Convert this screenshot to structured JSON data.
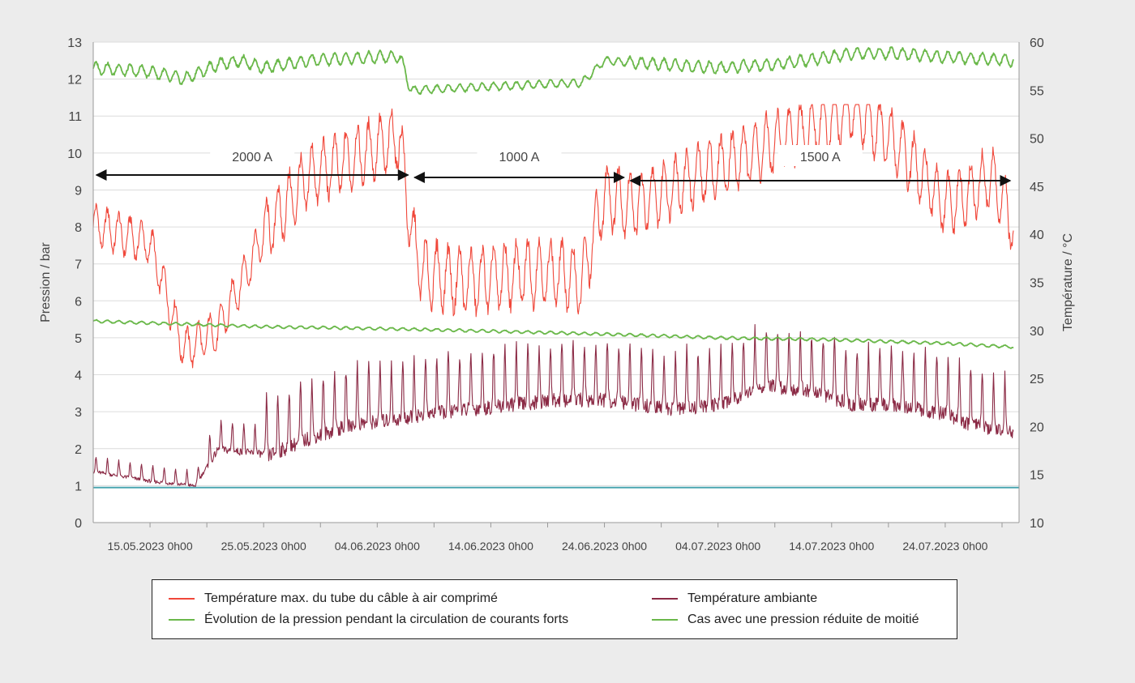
{
  "chart_data": {
    "type": "line",
    "title": "",
    "x_axis": {
      "tick_labels": [
        "15.05.2023 0h00",
        "25.05.2023 0h00",
        "04.06.2023 0h00",
        "14.06.2023 0h00",
        "24.06.2023 0h00",
        "04.07.2023 0h00",
        "14.07.2023 0h00",
        "24.07.2023 0h00"
      ],
      "range_days_from_label_start": [
        -5,
        76.5
      ]
    },
    "y_left": {
      "label": "Pression / bar",
      "ticks": [
        0,
        1,
        2,
        3,
        4,
        5,
        6,
        7,
        8,
        9,
        10,
        11,
        12,
        13
      ],
      "range": [
        0,
        13
      ]
    },
    "y_right": {
      "label": "Température / °C",
      "ticks": [
        10,
        15,
        20,
        25,
        30,
        35,
        40,
        45,
        50,
        55,
        60
      ],
      "range": [
        10,
        60
      ]
    },
    "grid": true,
    "series": [
      {
        "name": "Température max. du tube du câble à air comprimé",
        "axis": "right",
        "color": "#f0473a",
        "x": [
          -5,
          0,
          3,
          6,
          10,
          14,
          18,
          22,
          23,
          24,
          28,
          33,
          36,
          38,
          40,
          43,
          46,
          50,
          54,
          58,
          62,
          64,
          66,
          68,
          70,
          72,
          74,
          76
        ],
        "y": [
          41,
          39,
          28,
          30,
          40,
          46,
          48,
          50,
          40,
          36,
          35,
          36,
          36,
          35,
          44,
          43,
          45,
          47,
          49,
          51,
          53,
          51,
          49,
          46,
          43,
          44,
          46,
          41
        ]
      },
      {
        "name": "Température ambiante",
        "axis": "right",
        "color": "#8b2a45",
        "x": [
          -5,
          0,
          4,
          6,
          10,
          14,
          18,
          22,
          24,
          28,
          32,
          36,
          40,
          43,
          46,
          50,
          54,
          58,
          62,
          66,
          70,
          72,
          74,
          76
        ],
        "y": [
          15.5,
          14.5,
          14.0,
          18.0,
          17.5,
          19.5,
          21.0,
          21.5,
          22.0,
          22.5,
          23.0,
          23.5,
          23.5,
          23.0,
          22.5,
          23.0,
          25.0,
          24.5,
          23.0,
          23.0,
          22.0,
          21.0,
          20.5,
          20.0
        ]
      },
      {
        "name": "Évolution de la pression pendant la circulation de courants forts",
        "axis": "left",
        "color": "#6ab84a",
        "x": [
          -5,
          0,
          3,
          6,
          8,
          10,
          14,
          20,
          22,
          23,
          30,
          38,
          40,
          45,
          50,
          55,
          60,
          62,
          65,
          70,
          76
        ],
        "y": [
          12.3,
          12.2,
          12.0,
          12.4,
          12.5,
          12.3,
          12.5,
          12.6,
          12.6,
          11.7,
          11.8,
          11.9,
          12.5,
          12.4,
          12.3,
          12.4,
          12.6,
          12.7,
          12.7,
          12.6,
          12.5
        ]
      },
      {
        "name": "Cas avec une pression réduite de moitié",
        "axis": "left",
        "color": "#6ab84a",
        "x": [
          -5,
          10,
          20,
          30,
          40,
          50,
          60,
          70,
          76
        ],
        "y": [
          5.45,
          5.3,
          5.25,
          5.18,
          5.1,
          5.0,
          4.95,
          4.85,
          4.75
        ]
      },
      {
        "axis": "left",
        "color": "#4aa6b0",
        "x": [
          -5,
          76.5
        ],
        "y": [
          0.95,
          0.95
        ]
      }
    ],
    "annotations": [
      {
        "text": "2000 A",
        "x_start": -5,
        "x_end": 23
      },
      {
        "text": "1000 A",
        "x_start": 23,
        "x_end": 42
      },
      {
        "text": "1500 A",
        "x_start": 42,
        "x_end": 76
      }
    ],
    "legend": {
      "placement": "bottom",
      "entries": [
        {
          "label": "Température max. du tube du câble à air comprimé",
          "color": "#f0473a"
        },
        {
          "label": "Température ambiante",
          "color": "#8b2a45"
        },
        {
          "label": "Évolution de la pression pendant la circulation de courants forts",
          "color": "#6ab84a"
        },
        {
          "label": "Cas avec une pression réduite de moitié",
          "color": "#6ab84a"
        }
      ]
    }
  }
}
